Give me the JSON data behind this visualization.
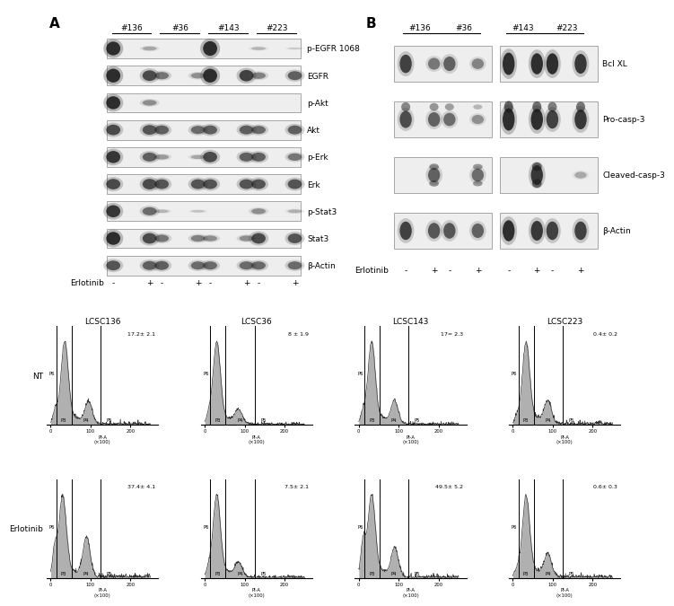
{
  "panel_A_labels": [
    "p-EGFR 1068",
    "EGFR",
    "p-Akt",
    "Akt",
    "p-Erk",
    "Erk",
    "p-Stat3",
    "Stat3",
    "β-Actin"
  ],
  "panel_A_col_labels": [
    "#136",
    "#36",
    "#143",
    "#223"
  ],
  "panel_B_labels": [
    "Bcl XL",
    "Pro-casp-3",
    "Cleaved-casp-3",
    "β-Actin"
  ],
  "panel_B_col_labels_left": [
    "#136",
    "#36"
  ],
  "panel_B_col_labels_right": [
    "#143",
    "#223"
  ],
  "panel_C_titles": [
    "LCSC136",
    "LCSC36",
    "LCSC143",
    "LCSC223"
  ],
  "panel_C_NT_values": [
    "17.2± 2.1",
    "8 ± 1.9",
    "17= 2.3",
    "0.4± 0.2"
  ],
  "panel_C_Erl_values": [
    "37.4± 4.1",
    "7.5± 2.1",
    "49.5± 5.2",
    "0.6± 0.3"
  ],
  "row_label_NT": "NT",
  "row_label_Erl": "Erlotinib",
  "erlotinib_label": "Erlotinib",
  "bg_color": "#ffffff",
  "label_fontsize": 7,
  "title_fontsize": 9,
  "panel_label_fontsize": 11
}
